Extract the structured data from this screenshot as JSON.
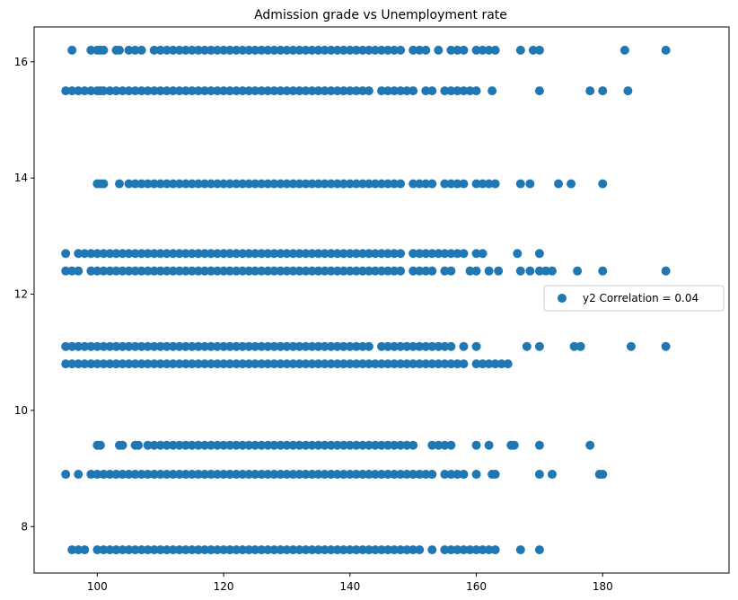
{
  "chart_data": {
    "type": "scatter",
    "title": "Admission grade vs Unemployment rate",
    "xlabel": "",
    "ylabel": "",
    "xlim": [
      90,
      200
    ],
    "ylim": [
      7.2,
      16.6
    ],
    "x_ticks": [
      100,
      120,
      140,
      160,
      180
    ],
    "y_ticks": [
      8,
      10,
      12,
      14,
      16
    ],
    "grid": false,
    "legend_position": "center-right",
    "marker_color": "#1f77b4",
    "series": [
      {
        "name": "y2 Correlation = 0.04",
        "rows": [
          {
            "y": 16.2,
            "x": [
              96,
              99,
              100,
              100.5,
              101,
              103,
              103.5,
              105,
              106,
              107,
              109,
              110,
              111,
              112,
              113,
              114,
              115,
              116,
              117,
              118,
              119,
              120,
              121,
              122,
              123,
              124,
              125,
              126,
              127,
              128,
              129,
              130,
              131,
              132,
              133,
              134,
              135,
              136,
              137,
              138,
              139,
              140,
              141,
              142,
              143,
              144,
              145,
              146,
              147,
              148,
              150,
              151,
              152,
              154,
              156,
              157,
              158,
              160,
              161,
              162,
              163,
              167,
              169,
              170,
              183.5,
              190
            ]
          },
          {
            "y": 15.5,
            "x": [
              95,
              96,
              97,
              98,
              99,
              100,
              100.5,
              101,
              102,
              103,
              104,
              105,
              106,
              107,
              108,
              109,
              110,
              111,
              112,
              113,
              114,
              115,
              116,
              117,
              118,
              119,
              120,
              121,
              122,
              123,
              124,
              125,
              126,
              127,
              128,
              129,
              130,
              131,
              132,
              133,
              134,
              135,
              136,
              137,
              138,
              139,
              140,
              141,
              142,
              143,
              145,
              146,
              147,
              148,
              149,
              150,
              152,
              153,
              155,
              156,
              157,
              158,
              159,
              160,
              162.5,
              170,
              178,
              180,
              184
            ]
          },
          {
            "y": 13.9,
            "x": [
              100,
              100.5,
              101,
              103.5,
              105,
              106,
              107,
              108,
              109,
              110,
              111,
              112,
              113,
              114,
              115,
              116,
              117,
              118,
              119,
              120,
              121,
              122,
              123,
              124,
              125,
              126,
              127,
              128,
              129,
              130,
              131,
              132,
              133,
              134,
              135,
              136,
              137,
              138,
              139,
              140,
              141,
              142,
              143,
              144,
              145,
              146,
              147,
              148,
              150,
              151,
              152,
              153,
              155,
              156,
              157,
              158,
              160,
              161,
              162,
              163,
              167,
              168.5,
              173,
              175,
              180
            ]
          },
          {
            "y": 12.7,
            "x": [
              95,
              97,
              98,
              99,
              100,
              101,
              102,
              103,
              104,
              105,
              106,
              107,
              108,
              109,
              110,
              111,
              112,
              113,
              114,
              115,
              116,
              117,
              118,
              119,
              120,
              121,
              122,
              123,
              124,
              125,
              126,
              127,
              128,
              129,
              130,
              131,
              132,
              133,
              134,
              135,
              136,
              137,
              138,
              139,
              140,
              141,
              142,
              143,
              144,
              145,
              146,
              147,
              148,
              150,
              151,
              152,
              153,
              154,
              155,
              156,
              157,
              158,
              160,
              161,
              166.5,
              170
            ]
          },
          {
            "y": 12.4,
            "x": [
              95,
              96,
              97,
              99,
              100,
              101,
              102,
              103,
              104,
              105,
              106,
              107,
              108,
              109,
              110,
              111,
              112,
              113,
              114,
              115,
              116,
              117,
              118,
              119,
              120,
              121,
              122,
              123,
              124,
              125,
              126,
              127,
              128,
              129,
              130,
              131,
              132,
              133,
              134,
              135,
              136,
              137,
              138,
              139,
              140,
              141,
              142,
              143,
              144,
              145,
              146,
              147,
              148,
              150,
              151,
              152,
              153,
              155,
              156,
              159,
              160,
              162,
              163.5,
              167,
              168.5,
              170,
              171,
              172,
              176,
              180,
              190
            ]
          },
          {
            "y": 11.1,
            "x": [
              95,
              96,
              97,
              98,
              99,
              100,
              101,
              102,
              103,
              104,
              105,
              106,
              107,
              108,
              109,
              110,
              111,
              112,
              113,
              114,
              115,
              116,
              117,
              118,
              119,
              120,
              121,
              122,
              123,
              124,
              125,
              126,
              127,
              128,
              129,
              130,
              131,
              132,
              133,
              134,
              135,
              136,
              137,
              138,
              139,
              140,
              141,
              142,
              143,
              145,
              146,
              147,
              148,
              149,
              150,
              151,
              152,
              153,
              154,
              155,
              156,
              158,
              160,
              168,
              170,
              175.5,
              176.5,
              184.5,
              190
            ]
          },
          {
            "y": 10.8,
            "x": [
              95,
              96,
              97,
              98,
              99,
              100,
              101,
              102,
              103,
              104,
              105,
              106,
              107,
              108,
              109,
              110,
              111,
              112,
              113,
              114,
              115,
              116,
              117,
              118,
              119,
              120,
              121,
              122,
              123,
              124,
              125,
              126,
              127,
              128,
              129,
              130,
              131,
              132,
              133,
              134,
              135,
              136,
              137,
              138,
              139,
              140,
              141,
              142,
              143,
              144,
              145,
              146,
              147,
              148,
              149,
              150,
              151,
              152,
              153,
              154,
              155,
              156,
              157,
              158,
              160,
              161,
              162,
              163,
              164,
              165
            ]
          },
          {
            "y": 9.4,
            "x": [
              100,
              100.5,
              103.5,
              104,
              106,
              106.5,
              108,
              109,
              110,
              111,
              112,
              113,
              114,
              115,
              116,
              117,
              118,
              119,
              120,
              121,
              122,
              123,
              124,
              125,
              126,
              127,
              128,
              129,
              130,
              131,
              132,
              133,
              134,
              135,
              136,
              137,
              138,
              139,
              140,
              141,
              142,
              143,
              144,
              145,
              146,
              147,
              148,
              149,
              150,
              153,
              154,
              155,
              156,
              160,
              162,
              165.5,
              166,
              170,
              178
            ]
          },
          {
            "y": 8.9,
            "x": [
              95,
              97,
              99,
              100,
              101,
              102,
              103,
              104,
              105,
              106,
              107,
              108,
              109,
              110,
              111,
              112,
              113,
              114,
              115,
              116,
              117,
              118,
              119,
              120,
              121,
              122,
              123,
              124,
              125,
              126,
              127,
              128,
              129,
              130,
              131,
              132,
              133,
              134,
              135,
              136,
              137,
              138,
              139,
              140,
              141,
              142,
              143,
              144,
              145,
              146,
              147,
              148,
              149,
              150,
              151,
              152,
              153,
              155,
              156,
              157,
              158,
              160,
              162.5,
              163,
              170,
              172,
              179.5,
              180
            ]
          },
          {
            "y": 7.6,
            "x": [
              96,
              97,
              98,
              100,
              101,
              102,
              103,
              104,
              105,
              106,
              107,
              108,
              109,
              110,
              111,
              112,
              113,
              114,
              115,
              116,
              117,
              118,
              119,
              120,
              121,
              122,
              123,
              124,
              125,
              126,
              127,
              128,
              129,
              130,
              131,
              132,
              133,
              134,
              135,
              136,
              137,
              138,
              139,
              140,
              141,
              142,
              143,
              144,
              145,
              146,
              147,
              148,
              149,
              150,
              151,
              153,
              155,
              156,
              157,
              158,
              159,
              160,
              161,
              162,
              163,
              167,
              170
            ]
          }
        ]
      }
    ]
  }
}
